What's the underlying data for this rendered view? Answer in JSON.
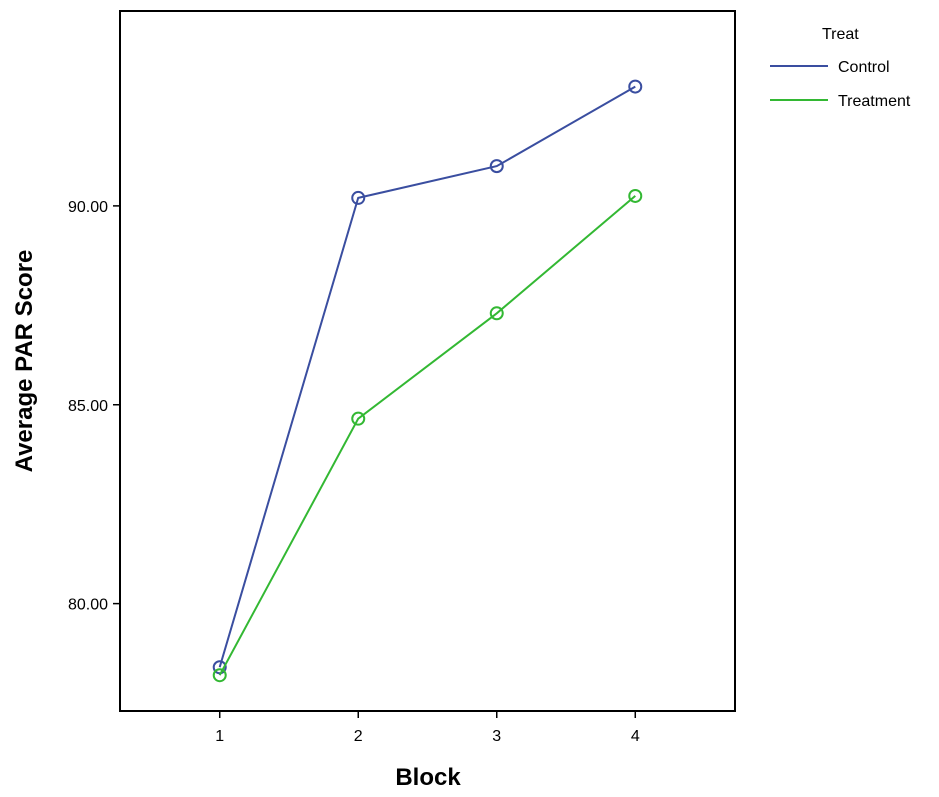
{
  "chart_data": {
    "type": "line",
    "xlabel": "Block",
    "ylabel": "Average PAR Score",
    "categories": [
      "1",
      "2",
      "3",
      "4"
    ],
    "xlim": [
      0.28,
      4.72
    ],
    "ylim": [
      77.3,
      94.9
    ],
    "yticks": [
      80.0,
      85.0,
      90.0
    ],
    "ytick_labels": [
      "80.00",
      "85.00",
      "90.00"
    ],
    "grid": false,
    "legend": {
      "title": "Treat",
      "placement": "outside-top-right"
    },
    "series": [
      {
        "name": "Control",
        "color": "#3a4ea0",
        "values": [
          78.4,
          90.2,
          91.0,
          93.0
        ]
      },
      {
        "name": "Treatment",
        "color": "#33b833",
        "values": [
          78.2,
          84.65,
          87.3,
          90.25
        ]
      }
    ]
  }
}
